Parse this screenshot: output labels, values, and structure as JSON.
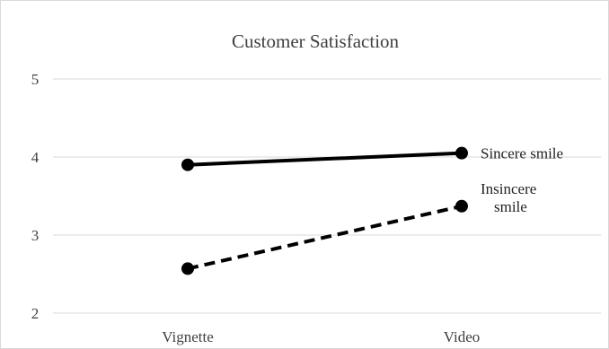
{
  "chart_data": {
    "type": "line",
    "title": "Customer Satisfaction",
    "xlabel": "",
    "ylabel": "",
    "categories": [
      "Vignette",
      "Video"
    ],
    "ylim": [
      2,
      5
    ],
    "yticks": [
      2,
      3,
      4,
      5
    ],
    "grid": true,
    "legend": "none",
    "series": [
      {
        "name": "Sincere smile",
        "label_lines": [
          "Sincere  smile"
        ],
        "values": [
          3.9,
          4.05
        ],
        "line_style": "solid",
        "color": "#000000"
      },
      {
        "name": "Insincere smile",
        "label_lines": [
          "Insincere",
          "smile"
        ],
        "values": [
          2.57,
          3.37
        ],
        "line_style": "dashed",
        "color": "#000000"
      }
    ],
    "colors": {
      "gridline": "#d9d9d9",
      "text": "#404040"
    }
  }
}
